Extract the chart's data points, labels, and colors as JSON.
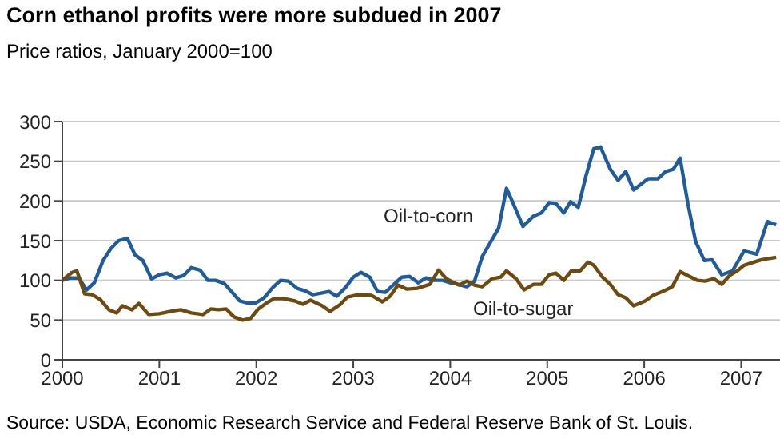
{
  "chart_data": {
    "type": "line",
    "title": "Corn ethanol profits were more subdued in 2007",
    "subtitle": "Price ratios, January 2000=100",
    "annotations": [
      "Source: USDA, Economic Research Service and Federal Reserve Bank of St. Louis."
    ],
    "series": [
      {
        "name": "Oil-to-corn",
        "color": "#1f5c99",
        "x": [
          2000.0,
          2000.08,
          2000.17,
          2000.25,
          2000.33,
          2000.42,
          2000.5,
          2000.58,
          2000.67,
          2000.75,
          2000.83,
          2000.92,
          2001.0,
          2001.08,
          2001.17,
          2001.25,
          2001.33,
          2001.42,
          2001.5,
          2001.58,
          2001.67,
          2001.75,
          2001.83,
          2001.92,
          2002.0,
          2002.08,
          2002.17,
          2002.25,
          2002.33,
          2002.42,
          2002.5,
          2002.58,
          2002.67,
          2002.75,
          2002.83,
          2002.92,
          2003.0,
          2003.08,
          2003.17,
          2003.25,
          2003.33,
          2003.42,
          2003.5,
          2003.58,
          2003.67,
          2003.75,
          2003.83,
          2003.92,
          2004.0,
          2004.08,
          2004.17,
          2004.25,
          2004.33,
          2004.5,
          2004.58,
          2004.66,
          2004.75,
          2004.86,
          2004.94,
          2005.02,
          2005.09,
          2005.17,
          2005.24,
          2005.32,
          2005.4,
          2005.48,
          2005.55,
          2005.65,
          2005.73,
          2005.81,
          2005.89,
          2006.04,
          2006.14,
          2006.22,
          2006.3,
          2006.37,
          2006.45,
          2006.53,
          2006.62,
          2006.7,
          2006.8,
          2006.91,
          2007.03,
          2007.16,
          2007.27,
          2007.36
        ],
        "values": [
          100,
          103,
          103,
          88,
          97,
          125,
          140,
          150,
          153,
          132,
          125,
          102,
          107,
          109,
          103,
          106,
          116,
          113,
          100,
          100,
          96,
          85,
          74,
          71,
          72,
          78,
          91,
          100,
          99,
          90,
          87,
          82,
          84,
          86,
          80,
          91,
          104,
          110,
          104,
          86,
          85,
          95,
          104,
          105,
          97,
          103,
          100,
          100,
          97,
          95,
          92,
          99,
          130,
          166,
          216,
          194,
          168,
          181,
          185,
          198,
          197,
          185,
          199,
          192,
          232,
          266,
          268,
          240,
          226,
          237,
          214,
          228,
          228,
          237,
          240,
          254,
          197,
          149,
          125,
          126,
          107,
          112,
          137,
          133,
          174,
          170
        ]
      },
      {
        "name": "Oil-to-sugar",
        "color": "#6e4a0e",
        "x": [
          2000.0,
          2000.1,
          2000.15,
          2000.23,
          2000.31,
          2000.39,
          2000.48,
          2000.56,
          2000.62,
          2000.72,
          2000.79,
          2000.89,
          2001.0,
          2001.12,
          2001.22,
          2001.33,
          2001.45,
          2001.53,
          2001.61,
          2001.69,
          2001.77,
          2001.86,
          2001.94,
          2002.02,
          2002.1,
          2002.18,
          2002.28,
          2002.4,
          2002.48,
          2002.56,
          2002.68,
          2002.76,
          2002.86,
          2002.94,
          2003.05,
          2003.19,
          2003.3,
          2003.38,
          2003.46,
          2003.55,
          2003.66,
          2003.79,
          2003.88,
          2003.96,
          2004.09,
          2004.17,
          2004.25,
          2004.33,
          2004.43,
          2004.52,
          2004.58,
          2004.68,
          2004.76,
          2004.86,
          2004.94,
          2005.02,
          2005.09,
          2005.17,
          2005.25,
          2005.34,
          2005.42,
          2005.48,
          2005.57,
          2005.65,
          2005.73,
          2005.81,
          2005.89,
          2006.01,
          2006.09,
          2006.21,
          2006.29,
          2006.37,
          2006.45,
          2006.55,
          2006.63,
          2006.72,
          2006.8,
          2006.88,
          2006.96,
          2007.03,
          2007.13,
          2007.21,
          2007.36
        ],
        "values": [
          100,
          110,
          112,
          83,
          82,
          76,
          63,
          59,
          68,
          63,
          71,
          57,
          58,
          61,
          63,
          59,
          57,
          64,
          63,
          64,
          54,
          50,
          52,
          64,
          71,
          77,
          77,
          74,
          70,
          75,
          68,
          61,
          69,
          79,
          82,
          81,
          73,
          80,
          94,
          89,
          90,
          95,
          113,
          102,
          94,
          99,
          94,
          92,
          102,
          104,
          112,
          102,
          88,
          95,
          95,
          107,
          109,
          100,
          112,
          112,
          123,
          119,
          104,
          95,
          82,
          78,
          68,
          74,
          81,
          87,
          92,
          111,
          106,
          100,
          99,
          102,
          95,
          106,
          112,
          119,
          123,
          126,
          129
        ]
      }
    ],
    "xlim": [
      2000,
      2007.4
    ],
    "xticks": [
      2000,
      2001,
      2002,
      2003,
      2004,
      2005,
      2006,
      2007
    ],
    "ylim": [
      0,
      300
    ],
    "yticks": [
      0,
      50,
      100,
      150,
      200,
      250,
      300
    ],
    "grid": "y",
    "marker": "none",
    "line_style": "solid"
  }
}
